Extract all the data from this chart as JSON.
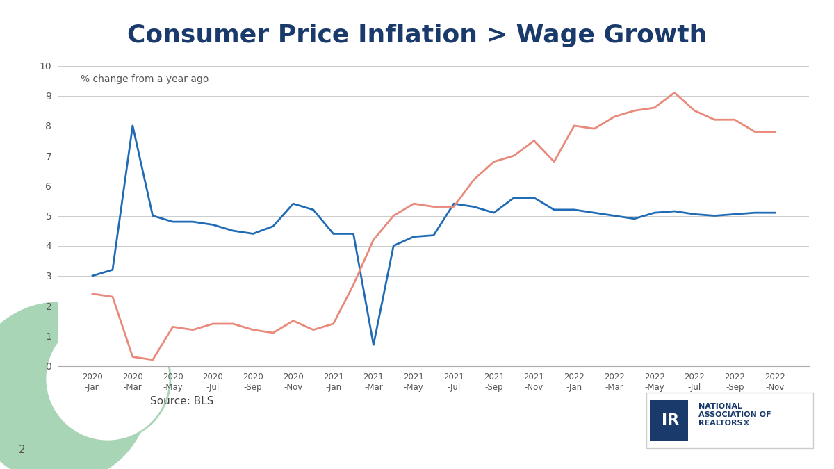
{
  "title": "Consumer Price Inflation > Wage Growth",
  "subtitle": "% change from a year ago",
  "source": "Source: BLS",
  "background_color": "#ffffff",
  "title_color": "#1a3a6b",
  "title_fontsize": 26,
  "tick_labels_top": [
    "2020",
    "2020",
    "2020",
    "2020",
    "2020",
    "2020",
    "2021",
    "2021",
    "2021",
    "2021",
    "2021",
    "2021",
    "2022",
    "2022",
    "2022",
    "2022",
    "2022",
    "2022"
  ],
  "tick_labels_bot": [
    "-Jan",
    "-Mar",
    "-May",
    "-Jul",
    "-Sep",
    "-Nov",
    "-Jan",
    "-Mar",
    "-May",
    "-Jul",
    "-Sep",
    "-Nov",
    "-Jan",
    "-Mar",
    "-May",
    "-Jul",
    "-Sep",
    "-Nov"
  ],
  "wage_data": [
    3.0,
    3.2,
    8.0,
    5.0,
    4.8,
    4.8,
    4.7,
    4.5,
    4.4,
    4.65,
    5.4,
    5.2,
    4.4,
    4.4,
    0.7,
    4.0,
    4.3,
    4.35,
    5.4,
    5.3,
    5.1,
    5.6,
    5.6,
    5.2,
    5.2,
    5.1,
    5.0,
    4.9,
    5.1,
    5.15,
    5.05,
    5.0,
    5.05,
    5.1,
    5.1
  ],
  "cpi_data": [
    2.4,
    2.3,
    0.3,
    0.2,
    1.3,
    1.2,
    1.4,
    1.4,
    1.2,
    1.1,
    1.5,
    1.2,
    1.4,
    2.7,
    4.2,
    5.0,
    5.4,
    5.3,
    5.3,
    6.2,
    6.8,
    7.0,
    7.5,
    6.8,
    8.0,
    7.9,
    8.3,
    8.5,
    8.6,
    9.1,
    8.5,
    8.2,
    8.2,
    7.8,
    7.8
  ],
  "wage_color": "#1f6bb5",
  "cpi_color": "#e8897a",
  "ylim": [
    0,
    10
  ],
  "yticks": [
    0,
    1,
    2,
    3,
    4,
    5,
    6,
    7,
    8,
    9,
    10
  ],
  "grid_color": "#cccccc",
  "line_width": 2.0,
  "green_light": "#a8d5b5",
  "green_mid": "#7dbf91",
  "page_num": "2"
}
